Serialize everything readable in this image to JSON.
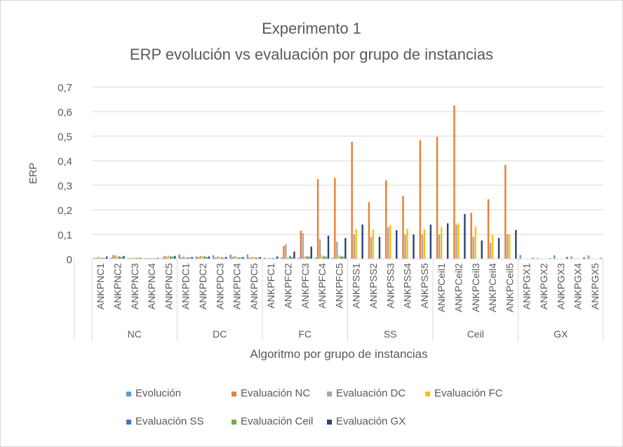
{
  "chart_data": {
    "type": "bar",
    "title": "Experimento 1",
    "subtitle": "ERP evolución vs evaluación por grupo de instancias",
    "xlabel": "Algoritmo por grupo de instancias",
    "ylabel": "ERP",
    "ylim": [
      0,
      0.7
    ],
    "yticks": [
      "0",
      "0,1",
      "0,2",
      "0,3",
      "0,4",
      "0,5",
      "0,6",
      "0,7"
    ],
    "grid": true,
    "legend_position": "bottom",
    "groups": [
      {
        "name": "NC",
        "categories": [
          "ANKPNC1",
          "ANKPNC2",
          "ANKPNC3",
          "ANKPNC4",
          "ANKPNC5"
        ]
      },
      {
        "name": "DC",
        "categories": [
          "ANKPDC1",
          "ANKPDC2",
          "ANKPDC3",
          "ANKPDC4",
          "ANKPDC5"
        ]
      },
      {
        "name": "FC",
        "categories": [
          "ANKPFC1",
          "ANKPFC2",
          "ANKPFC3",
          "ANKPFC4",
          "ANKPFC5"
        ]
      },
      {
        "name": "SS",
        "categories": [
          "ANKPSS1",
          "ANKPSS2",
          "ANKPSS3",
          "ANKPSS4",
          "ANKPSS5"
        ]
      },
      {
        "name": "Ceil",
        "categories": [
          "ANKPCeil1",
          "ANKPCeil2",
          "ANKPCeil3",
          "ANKPCeil4",
          "ANKPCeil5"
        ]
      },
      {
        "name": "GX",
        "categories": [
          "ANKPGX1",
          "ANKPGX2",
          "ANKPGX3",
          "ANKPGX4",
          "ANKPGX5"
        ]
      }
    ],
    "series": [
      {
        "name": "Evolución",
        "color": "#5b9bd5",
        "values": [
          0.004,
          0.005,
          0.003,
          0.003,
          0.004,
          0.018,
          0.01,
          0.015,
          0.018,
          0.018,
          0.005,
          0.006,
          0.005,
          0.006,
          0.005,
          0.001,
          0.001,
          0.001,
          0.001,
          0.001,
          0.001,
          0.001,
          0.001,
          0.001,
          0.001,
          0.016,
          0.004,
          0.015,
          0.01,
          0.014
        ]
      },
      {
        "name": "Evaluación NC",
        "color": "#ed7d31",
        "values": [
          0.004,
          0.016,
          0.004,
          0.004,
          0.012,
          0.006,
          0.008,
          0.006,
          0.008,
          0.006,
          0.002,
          0.053,
          0.115,
          0.325,
          0.33,
          0.477,
          0.231,
          0.32,
          0.257,
          0.483,
          0.497,
          0.625,
          0.188,
          0.243,
          0.383
        ]
      },
      {
        "name": "Evaluación DC",
        "color": "#a5a5a5",
        "values": [
          0.008,
          0.015,
          0.004,
          0.003,
          0.01,
          0.01,
          0.012,
          0.01,
          0.012,
          0.008,
          0.005,
          0.06,
          0.105,
          0.08,
          0.07,
          0.1,
          0.09,
          0.13,
          0.1,
          0.1,
          0.1,
          0.14,
          0.09,
          0.065,
          0.1
        ]
      },
      {
        "name": "Evaluación FC",
        "color": "#ffc000",
        "values": [
          0.006,
          0.01,
          0.006,
          0.004,
          0.014,
          0.006,
          0.012,
          0.008,
          0.008,
          0.008,
          0.004,
          0.006,
          0.012,
          0.015,
          0.015,
          0.12,
          0.12,
          0.137,
          0.123,
          0.12,
          0.13,
          0.145,
          0.133,
          0.098,
          0.1
        ]
      },
      {
        "name": "Evaluación SS",
        "color": "#4472c4",
        "values": [
          0.004,
          0.01,
          0.004,
          0.003,
          0.01,
          0.006,
          0.01,
          0.006,
          0.006,
          0.006,
          0.004,
          0.012,
          0.01,
          0.01,
          0.01
        ]
      },
      {
        "name": "Evaluación Ceil",
        "color": "#70ad47",
        "values": [
          0.004,
          0.008,
          0.004,
          0.003,
          0.01,
          0.005,
          0.008,
          0.005,
          0.006,
          0.005,
          0.003,
          0.008,
          0.01,
          0.01,
          0.01
        ]
      },
      {
        "name": "Evaluación GX",
        "color": "#264478",
        "values": [
          0.01,
          0.012,
          0.004,
          0.004,
          0.012,
          0.008,
          0.01,
          0.008,
          0.008,
          0.008,
          0.01,
          0.03,
          0.05,
          0.095,
          0.085,
          0.14,
          0.09,
          0.117,
          0.1,
          0.14,
          0.145,
          0.183,
          0.075,
          0.085,
          0.118,
          0.004,
          0.003,
          0.008,
          0.006,
          0.004
        ]
      }
    ]
  }
}
